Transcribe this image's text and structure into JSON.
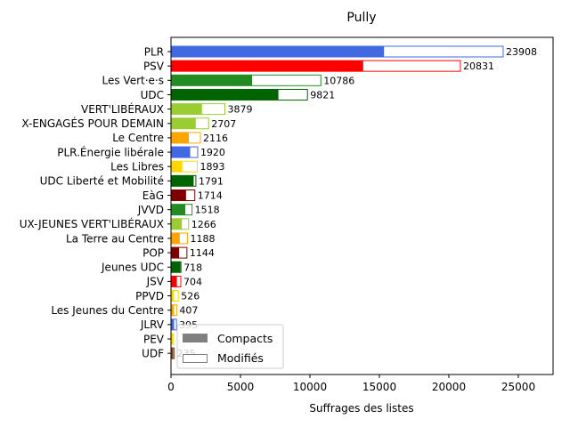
{
  "chart_data": {
    "type": "bar",
    "orientation": "horizontal",
    "title": "Pully",
    "xlabel": "Suffrages des listes",
    "ylabel": "",
    "xlim": [
      0,
      27500
    ],
    "xticks": [
      0,
      5000,
      10000,
      15000,
      20000,
      25000
    ],
    "xtick_labels": [
      "0",
      "5000",
      "10000",
      "15000",
      "20000",
      "25000"
    ],
    "grid": false,
    "legend_position": "lower-left",
    "legend": [
      {
        "label": "Compacts",
        "style": "filled",
        "color": "#808080"
      },
      {
        "label": "Modifiés",
        "style": "outline",
        "color": "#808080"
      }
    ],
    "categories": [
      "PLR",
      "PSV",
      "Les Vert·e·s",
      "UDC",
      "VERT'LIBÉRAUX",
      "X-ENGAGÉS POUR DEMAIN",
      "Le Centre",
      "PLR.Énergie libérale",
      "Les Libres",
      "UDC Liberté et Mobilité",
      "EàG",
      "JVVD",
      "UX-JEUNES VERT'LIBÉRAUX",
      "La Terre au Centre",
      "POP",
      "Jeunes UDC",
      "JSV",
      "PPVD",
      "Les Jeunes du Centre",
      "JLRV",
      "PEV",
      "UDF"
    ],
    "colors": [
      "#4169e1",
      "#ff0000",
      "#228b22",
      "#006400",
      "#9acd32",
      "#9acd32",
      "#ffa500",
      "#4169e1",
      "#ffd700",
      "#006400",
      "#800000",
      "#228b22",
      "#9acd32",
      "#ffa500",
      "#800000",
      "#006400",
      "#ff0000",
      "#ffd700",
      "#ffa500",
      "#4169e1",
      "#ffd700",
      "#8b4513"
    ],
    "series": [
      {
        "name": "Compacts",
        "values": [
          15300,
          13800,
          5800,
          7700,
          2200,
          1750,
          1250,
          1350,
          780,
          1600,
          1050,
          1000,
          750,
          600,
          550,
          650,
          390,
          160,
          180,
          190,
          90,
          140
        ]
      },
      {
        "name": "Modifiés",
        "values": [
          8608,
          7031,
          4986,
          2121,
          1679,
          957,
          866,
          570,
          1113,
          191,
          664,
          518,
          516,
          588,
          594,
          68,
          314,
          366,
          227,
          205,
          80,
          95
        ]
      }
    ],
    "totals": [
      23908,
      20831,
      10786,
      9821,
      3879,
      2707,
      2116,
      1920,
      1893,
      1791,
      1714,
      1518,
      1266,
      1188,
      1144,
      718,
      704,
      526,
      407,
      395,
      "",
      "235"
    ]
  }
}
